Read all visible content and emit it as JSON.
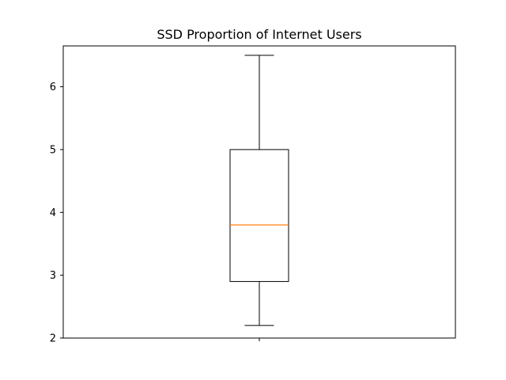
{
  "chart_data": {
    "type": "box",
    "title": "SSD Proportion of Internet Users",
    "xlabel": "",
    "ylabel": "",
    "ylim": [
      2.0,
      6.65
    ],
    "yticks": [
      2,
      3,
      4,
      5,
      6
    ],
    "xticks": [
      ""
    ],
    "grid": false,
    "legend": "none",
    "boxes": [
      {
        "whisker_low": 2.2,
        "q1": 2.9,
        "median": 3.8,
        "q3": 5.0,
        "whisker_high": 6.5
      }
    ],
    "colors": {
      "box": "#000000",
      "median": "#ff7f0e",
      "axes": "#000000"
    }
  }
}
